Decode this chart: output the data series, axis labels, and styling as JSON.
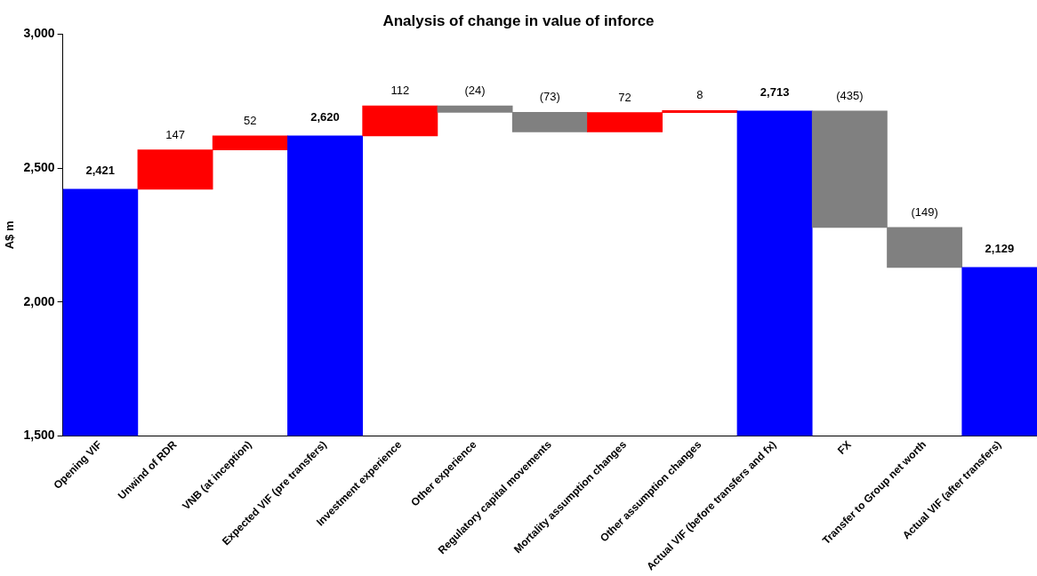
{
  "chart_data": {
    "type": "bar",
    "title": "Analysis of change in value of inforce",
    "ylabel": "A$ m",
    "categories": [
      "Opening VIF",
      "Unwind of RDR",
      "VNB (at inception)",
      "Expected VIF (pre transfers)",
      "Investment experience",
      "Other experience",
      "Regulatory capital movements",
      "Mortality assumption changes",
      "Other assumption changes",
      "Actual VIF (before transfers and fx)",
      "FX",
      "Transfer to Group net worth",
      "Actual VIF (after transfers)"
    ],
    "values": [
      2421,
      147,
      52,
      2620,
      112,
      -24,
      -73,
      72,
      8,
      2713,
      -435,
      -149,
      2129
    ],
    "base": [
      null,
      2421,
      2568,
      null,
      2620,
      2732,
      2708,
      2635,
      2707,
      null,
      2713,
      2278,
      null
    ],
    "colors": [
      "#0000ff",
      "#ff0000",
      "#ff0000",
      "#0000ff",
      "#ff0000",
      "#808080",
      "#808080",
      "#ff0000",
      "#ff0000",
      "#0000ff",
      "#808080",
      "#808080",
      "#0000ff"
    ],
    "value_labels": [
      "2,421",
      "147",
      "52",
      "2,620",
      "112",
      "(24)",
      "(73)",
      "72",
      "8",
      "2,713",
      "(435)",
      "(149)",
      "2,129"
    ],
    "ylim": [
      1500,
      3000
    ],
    "yticks": [
      {
        "value": 1500,
        "label": "1,500"
      },
      {
        "value": 2000,
        "label": "2,000"
      },
      {
        "value": 2500,
        "label": "2,500"
      },
      {
        "value": 3000,
        "label": "3,000"
      }
    ],
    "grid": false,
    "legend": false
  }
}
